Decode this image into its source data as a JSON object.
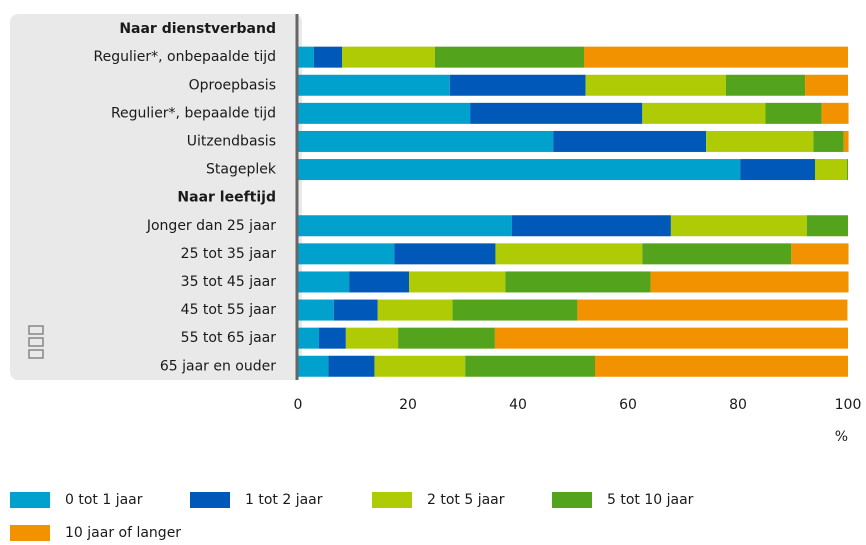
{
  "chart_data": {
    "type": "stacked-bar-horizontal",
    "categories": [
      "Naar dienstverband",
      "Regulier*, onbepaalde tijd",
      "Oproepbasis",
      "Regulier*, bepaalde tijd",
      "Uitzendbasis",
      "Stageplek",
      "Naar leeftijd",
      "Jonger dan 25 jaar",
      "25 tot 35 jaar",
      "35 tot 45 jaar",
      "45 tot 55 jaar",
      "55 tot 65 jaar",
      "65 jaar en ouder"
    ],
    "series": [
      {
        "name": "0 tot 1 jaar",
        "color": "#00a1cd",
        "values": [
          null,
          2.9,
          27.6,
          31.3,
          46.4,
          80.4,
          null,
          38.9,
          17.5,
          9.3,
          6.5,
          3.8,
          5.5
        ]
      },
      {
        "name": "1 tot 2 jaar",
        "color": "#0058b8",
        "values": [
          null,
          5.1,
          24.7,
          31.3,
          27.8,
          13.6,
          null,
          28.9,
          18.4,
          10.9,
          8.0,
          4.9,
          8.4
        ]
      },
      {
        "name": "2 tot 5 jaar",
        "color": "#afcb05",
        "values": [
          null,
          16.9,
          25.5,
          22.4,
          19.5,
          5.8,
          null,
          24.7,
          26.7,
          17.5,
          13.6,
          9.5,
          16.5
        ]
      },
      {
        "name": "5 tot 10 jaar",
        "color": "#53a31d",
        "values": [
          null,
          27.1,
          14.4,
          10.2,
          5.5,
          0.2,
          null,
          7.5,
          27.1,
          26.4,
          22.7,
          17.6,
          23.6
        ]
      },
      {
        "name": "10 jaar of langer",
        "color": "#f39200",
        "values": [
          null,
          48.0,
          7.8,
          4.9,
          0.9,
          0,
          null,
          0,
          10.4,
          36.0,
          49.1,
          64.2,
          46.0
        ]
      }
    ],
    "xlim": [
      0,
      100
    ],
    "xticks": [
      0,
      20,
      40,
      60,
      80,
      100
    ],
    "xlabel": "%"
  }
}
